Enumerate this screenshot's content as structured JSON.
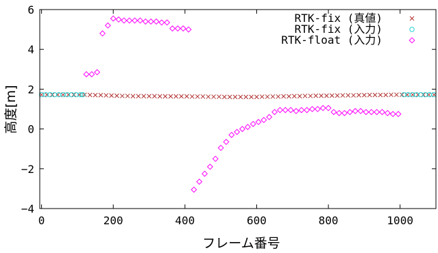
{
  "chart_data": {
    "type": "scatter",
    "title": "",
    "xlabel": "フレーム番号",
    "ylabel": "高度[m]",
    "xlim": [
      -5,
      1100
    ],
    "ylim": [
      -4,
      6
    ],
    "x_ticks": [
      0,
      200,
      400,
      600,
      800,
      1000
    ],
    "y_ticks": [
      -4,
      -2,
      0,
      2,
      4,
      6
    ],
    "x_tick_labels": [
      "0",
      "200",
      "400",
      "600",
      "800",
      "1000"
    ],
    "y_tick_labels": [
      "−4",
      "−2",
      "0",
      "2",
      "4",
      "6"
    ],
    "grid": false,
    "legend_position": "top-right",
    "series": [
      {
        "name": "RTK-fix (真値)",
        "marker": "x",
        "color": "#b03030",
        "x": [
          0,
          15,
          30,
          45,
          60,
          75,
          90,
          105,
          120,
          135,
          150,
          165,
          180,
          195,
          210,
          225,
          240,
          255,
          270,
          285,
          300,
          315,
          330,
          345,
          360,
          375,
          390,
          405,
          420,
          435,
          450,
          465,
          480,
          495,
          510,
          525,
          540,
          555,
          570,
          585,
          600,
          615,
          630,
          645,
          660,
          675,
          690,
          705,
          720,
          735,
          750,
          765,
          780,
          795,
          810,
          825,
          840,
          855,
          870,
          885,
          900,
          915,
          930,
          945,
          960,
          975,
          990,
          1005,
          1020,
          1035,
          1050,
          1065,
          1080,
          1095
        ],
        "y": [
          1.72,
          1.72,
          1.72,
          1.72,
          1.72,
          1.72,
          1.72,
          1.72,
          1.72,
          1.71,
          1.7,
          1.7,
          1.69,
          1.68,
          1.67,
          1.66,
          1.66,
          1.65,
          1.65,
          1.65,
          1.65,
          1.65,
          1.64,
          1.64,
          1.64,
          1.64,
          1.64,
          1.64,
          1.63,
          1.63,
          1.63,
          1.62,
          1.62,
          1.62,
          1.61,
          1.61,
          1.61,
          1.61,
          1.61,
          1.61,
          1.61,
          1.62,
          1.62,
          1.63,
          1.63,
          1.64,
          1.64,
          1.65,
          1.65,
          1.66,
          1.66,
          1.67,
          1.67,
          1.67,
          1.68,
          1.68,
          1.69,
          1.69,
          1.69,
          1.7,
          1.7,
          1.71,
          1.71,
          1.71,
          1.71,
          1.72,
          1.72,
          1.72,
          1.72,
          1.72,
          1.72,
          1.72,
          1.72,
          1.72
        ]
      },
      {
        "name": "RTK-fix (入力)",
        "marker": "circle",
        "color": "#20d0d0",
        "x": [
          0,
          12,
          24,
          36,
          48,
          60,
          72,
          84,
          96,
          108,
          115,
          1010,
          1022,
          1034,
          1046,
          1058,
          1070,
          1082,
          1094
        ],
        "y": [
          1.72,
          1.72,
          1.72,
          1.72,
          1.72,
          1.72,
          1.72,
          1.72,
          1.72,
          1.72,
          1.72,
          1.72,
          1.72,
          1.72,
          1.72,
          1.72,
          1.72,
          1.72,
          1.72
        ]
      },
      {
        "name": "RTK-float (入力)",
        "marker": "diamond",
        "color": "#ff00ff",
        "x": [
          125,
          140,
          155,
          170,
          185,
          200,
          215,
          230,
          245,
          260,
          275,
          290,
          305,
          320,
          335,
          350,
          365,
          380,
          395,
          410,
          425,
          440,
          455,
          470,
          485,
          500,
          515,
          530,
          545,
          560,
          575,
          590,
          605,
          620,
          635,
          650,
          665,
          680,
          695,
          710,
          725,
          740,
          755,
          770,
          785,
          800,
          815,
          830,
          845,
          860,
          875,
          890,
          905,
          920,
          935,
          950,
          965,
          980,
          995
        ],
        "y": [
          2.75,
          2.75,
          2.85,
          4.8,
          5.2,
          5.55,
          5.5,
          5.45,
          5.45,
          5.45,
          5.45,
          5.4,
          5.4,
          5.4,
          5.35,
          5.35,
          5.05,
          5.05,
          5.05,
          5.0,
          -3.05,
          -2.65,
          -2.25,
          -1.9,
          -1.5,
          -0.95,
          -0.65,
          -0.3,
          -0.15,
          0.0,
          0.1,
          0.25,
          0.35,
          0.45,
          0.6,
          0.85,
          0.95,
          0.95,
          0.95,
          0.9,
          0.95,
          0.95,
          1.0,
          1.0,
          1.05,
          1.05,
          0.85,
          0.8,
          0.8,
          0.85,
          0.9,
          0.9,
          0.85,
          0.85,
          0.85,
          0.85,
          0.8,
          0.75,
          0.75
        ]
      }
    ]
  }
}
